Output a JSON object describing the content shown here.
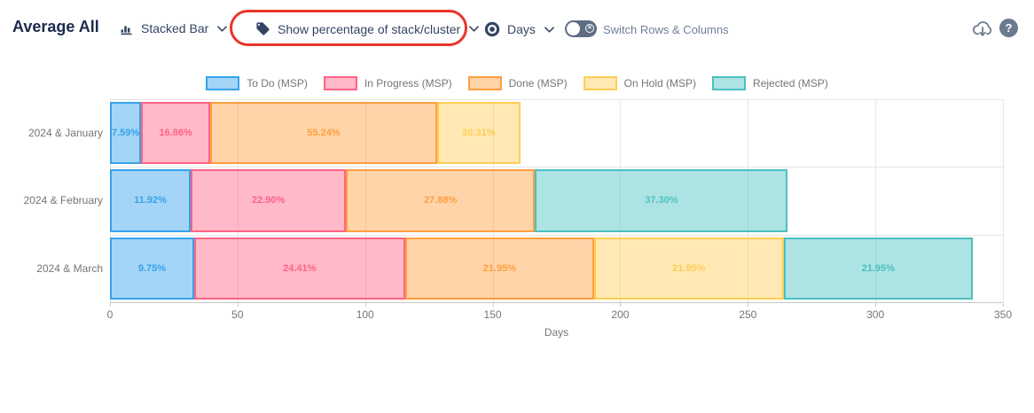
{
  "header": {
    "title": "Average All",
    "chart_type_label": "Stacked Bar",
    "percentage_label": "Show percentage of stack/cluster",
    "measure_label": "Days",
    "switch_label": "Switch Rows & Columns",
    "icons": {
      "chart_type": "bar-chart-icon",
      "percentage": "tag-icon",
      "measure": "target-icon",
      "switch": "toggle-off-with-x",
      "export": "cloud-download-icon",
      "help": "question-mark-icon"
    }
  },
  "annotation": {
    "type": "red-ellipse-highlight",
    "around": "Show percentage of stack/cluster"
  },
  "colors": {
    "title_text": "#1C2B4D",
    "control_text": "#344563",
    "muted_text": "#6E7E99",
    "axis_text": "#757575",
    "grid": "#E6E6E6",
    "axis_line": "#C9C9C9",
    "annotation_red": "#E9342A",
    "toggle_bg": "#5E6C84",
    "icon_gray": "#6B7A90"
  },
  "chart_data": {
    "type": "bar",
    "orientation": "horizontal",
    "stacked": true,
    "value_mode": "percentage of stack shown as labels, axis in days",
    "categories": [
      "2024 & January",
      "2024 & February",
      "2024 & March"
    ],
    "series": [
      {
        "name": "To Do (MSP)",
        "color": "#36A2EB",
        "values": [
          12.2,
          31.7,
          33.0
        ],
        "labels": [
          "7.59%",
          "11.92%",
          "9.75%"
        ]
      },
      {
        "name": "In Progress (MSP)",
        "color": "#FF6384",
        "values": [
          27.1,
          60.8,
          82.6
        ],
        "labels": [
          "16.86%",
          "22.90%",
          "24.41%"
        ]
      },
      {
        "name": "Done (MSP)",
        "color": "#FF9F40",
        "values": [
          88.9,
          74.1,
          74.2
        ],
        "labels": [
          "55.24%",
          "27.88%",
          "21.95%"
        ]
      },
      {
        "name": "On Hold (MSP)",
        "color": "#FFCD56",
        "values": [
          32.7,
          0,
          74.2
        ],
        "labels": [
          "20.31%",
          "",
          "21.95%"
        ]
      },
      {
        "name": "Rejected (MSP)",
        "color": "#4BC0C0",
        "values": [
          0,
          99.1,
          74.2
        ],
        "labels": [
          "",
          "37.30%",
          "21.95%"
        ]
      }
    ],
    "stack_totals_days": [
      161,
      265.7,
      338.2
    ],
    "xlabel": "Days",
    "xlim": [
      0,
      350
    ],
    "xticks": [
      0,
      50,
      100,
      150,
      200,
      250,
      300,
      350
    ],
    "grid": true,
    "legend_position": "top"
  }
}
